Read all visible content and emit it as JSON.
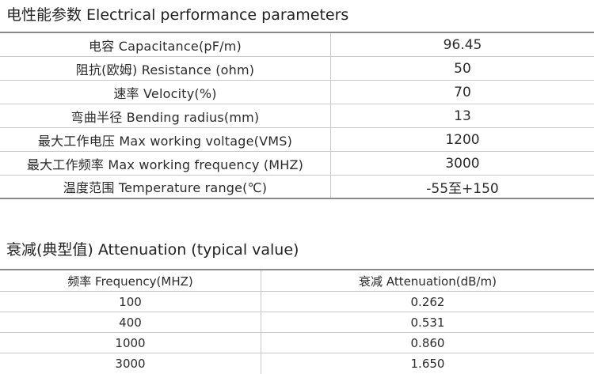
{
  "electrical": {
    "title": "电性能参数 Electrical performance parameters",
    "rows": [
      {
        "label": "电容 Capacitance(pF/m)",
        "value": "96.45"
      },
      {
        "label": "阻抗(欧姆) Resistance (ohm)",
        "value": "50"
      },
      {
        "label": "速率 Velocity(%)",
        "value": "70"
      },
      {
        "label": "弯曲半径 Bending radius(mm)",
        "value": "13"
      },
      {
        "label": "最大工作电压 Max working voltage(VMS)",
        "value": "1200"
      },
      {
        "label": "最大工作频率 Max working frequency (MHZ)",
        "value": "3000"
      },
      {
        "label": "温度范围 Temperature range(℃)",
        "value": "-55至+150"
      }
    ]
  },
  "attenuation": {
    "title": "衰减(典型值) Attenuation (typical value)",
    "headers": {
      "frequency": "频率 Frequency(MHZ)",
      "attenuation": "衰减 Attenuation(dB/m)"
    },
    "rows": [
      {
        "frequency": "100",
        "attenuation": "0.262"
      },
      {
        "frequency": "400",
        "attenuation": "0.531"
      },
      {
        "frequency": "1000",
        "attenuation": "0.860"
      },
      {
        "frequency": "3000",
        "attenuation": "1.650"
      }
    ]
  }
}
